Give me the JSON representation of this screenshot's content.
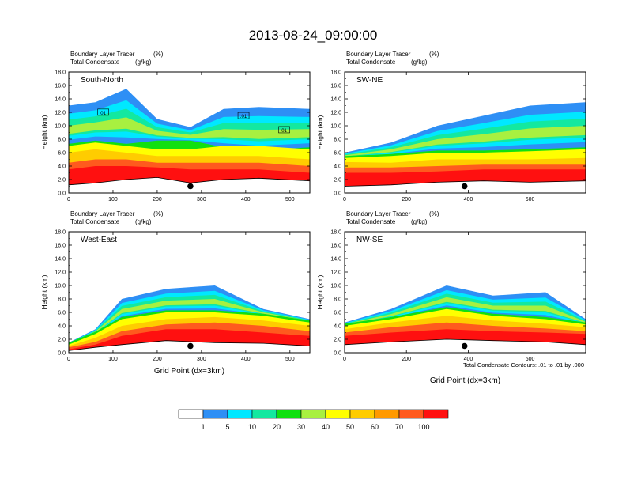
{
  "title": "2013-08-24_09:00:00",
  "colors": {
    "shading": [
      "#ffffff",
      "#2e8ff5",
      "#00e8ff",
      "#13e8a0",
      "#10e010",
      "#a8f040",
      "#ffff00",
      "#ffcc00",
      "#ff9900",
      "#ff5a1e",
      "#ff1010"
    ],
    "terrain_line": "#000000",
    "contour_line": "#000000"
  },
  "chart_data": [
    {
      "type": "heatmap",
      "panel": "South-North",
      "label_left_1": "Boundary Layer Tracer",
      "unit_1": "(%)",
      "label_left_2": "Total Condensate",
      "unit_2": "(g/kg)",
      "ylabel": "Height (km)",
      "xlabel": "",
      "ylim": [
        0,
        18
      ],
      "xlim": [
        0,
        545
      ],
      "yticks": [
        "0.0",
        "2.0",
        "4.0",
        "6.0",
        "8.0",
        "10.0",
        "12.0",
        "14.0",
        "16.0",
        "18.0"
      ],
      "xticks": [
        "0",
        "100",
        "200",
        "300",
        "400",
        "500"
      ],
      "marker_x": 275,
      "marker_y": 1.0,
      "contour_labels": [
        {
          "text": "01",
          "x": 78,
          "y": 11.9
        },
        {
          "text": ".01",
          "x": 395,
          "y": 11.4
        },
        {
          "text": "01",
          "x": 487,
          "y": 9.3
        }
      ],
      "columns": [
        {
          "x": 0,
          "terrain": 1.2,
          "bl": [
            3.5,
            4.5,
            6,
            7
          ],
          "cloud": [
            7,
            13
          ]
        },
        {
          "x": 60,
          "terrain": 1.5,
          "bl": [
            4,
            5,
            6.5,
            7.5
          ],
          "cloud": [
            7.5,
            13.5
          ]
        },
        {
          "x": 130,
          "terrain": 2.0,
          "bl": [
            4,
            5,
            6,
            7
          ],
          "cloud": [
            7,
            15.5
          ]
        },
        {
          "x": 200,
          "terrain": 2.3,
          "bl": [
            3.8,
            4.5,
            5.5,
            6.5
          ],
          "cloud": [
            7.5,
            11
          ]
        },
        {
          "x": 275,
          "terrain": 1.5,
          "bl": [
            3.5,
            4.5,
            5.5,
            6.5
          ],
          "cloud": [
            7.5,
            9.8
          ]
        },
        {
          "x": 350,
          "terrain": 2.0,
          "bl": [
            3.5,
            4.5,
            5.5,
            7
          ],
          "cloud": [
            6.5,
            12.5
          ]
        },
        {
          "x": 430,
          "terrain": 2.2,
          "bl": [
            3.5,
            4.5,
            5.5,
            7
          ],
          "cloud": [
            6,
            12.8
          ]
        },
        {
          "x": 545,
          "terrain": 1.8,
          "bl": [
            3,
            4,
            5,
            6.5
          ],
          "cloud": [
            6.5,
            12.5
          ]
        }
      ]
    },
    {
      "type": "heatmap",
      "panel": "SW-NE",
      "label_left_1": "Boundary Layer Tracer",
      "unit_1": "(%)",
      "label_left_2": "Total Condensate",
      "unit_2": "(g/kg)",
      "ylabel": "Height (km)",
      "xlabel": "",
      "ylim": [
        0,
        18
      ],
      "xlim": [
        0,
        780
      ],
      "yticks": [
        "0.0",
        "2.0",
        "4.0",
        "6.0",
        "8.0",
        "10.0",
        "12.0",
        "14.0",
        "16.0",
        "18.0"
      ],
      "xticks": [
        "0",
        "200",
        "400",
        "600"
      ],
      "marker_x": 388,
      "marker_y": 1.0,
      "contour_labels": [],
      "columns": [
        {
          "x": 0,
          "terrain": 1.0,
          "bl": [
            3,
            3.8,
            4.6,
            5.2
          ],
          "cloud": [
            5.2,
            6
          ]
        },
        {
          "x": 150,
          "terrain": 1.2,
          "bl": [
            3,
            3.8,
            4.5,
            5.5
          ],
          "cloud": [
            5.5,
            7.5
          ]
        },
        {
          "x": 300,
          "terrain": 1.6,
          "bl": [
            3.2,
            4,
            5,
            6
          ],
          "cloud": [
            6,
            10
          ]
        },
        {
          "x": 450,
          "terrain": 1.8,
          "bl": [
            3.5,
            4.2,
            5,
            6
          ],
          "cloud": [
            6,
            11.5
          ]
        },
        {
          "x": 600,
          "terrain": 1.6,
          "bl": [
            3.5,
            4.2,
            5,
            6.2
          ],
          "cloud": [
            6.2,
            13
          ]
        },
        {
          "x": 780,
          "terrain": 1.8,
          "bl": [
            3.5,
            4.2,
            5.2,
            6.5
          ],
          "cloud": [
            6.5,
            13.5
          ]
        }
      ]
    },
    {
      "type": "heatmap",
      "panel": "West-East",
      "label_left_1": "Boundary Layer Tracer",
      "unit_1": "(%)",
      "label_left_2": "Total Condensate",
      "unit_2": "(g/kg)",
      "ylabel": "Height (km)",
      "xlabel": "Grid Point (dx=3km)",
      "ylim": [
        0,
        18
      ],
      "xlim": [
        0,
        545
      ],
      "yticks": [
        "0.0",
        "2.0",
        "4.0",
        "6.0",
        "8.0",
        "10.0",
        "12.0",
        "14.0",
        "16.0",
        "18.0"
      ],
      "xticks": [
        "0",
        "100",
        "200",
        "300",
        "400",
        "500"
      ],
      "marker_x": 275,
      "marker_y": 1.0,
      "contour_labels": [],
      "columns": [
        {
          "x": 0,
          "terrain": 0.3,
          "bl": [
            0.5,
            0.8,
            1.0,
            1.2
          ],
          "cloud": [
            1.2,
            1.5
          ]
        },
        {
          "x": 60,
          "terrain": 0.8,
          "bl": [
            1.2,
            1.6,
            2.2,
            2.8
          ],
          "cloud": [
            2.8,
            3.5
          ]
        },
        {
          "x": 120,
          "terrain": 1.2,
          "bl": [
            2.5,
            3.2,
            4,
            5
          ],
          "cloud": [
            5,
            8
          ]
        },
        {
          "x": 220,
          "terrain": 1.8,
          "bl": [
            3.5,
            4.2,
            5,
            6
          ],
          "cloud": [
            6,
            9.5
          ]
        },
        {
          "x": 330,
          "terrain": 1.5,
          "bl": [
            3.5,
            4.5,
            5.3,
            6
          ],
          "cloud": [
            6,
            10
          ]
        },
        {
          "x": 440,
          "terrain": 1.4,
          "bl": [
            3,
            4,
            4.8,
            5.5
          ],
          "cloud": [
            5.5,
            6.5
          ]
        },
        {
          "x": 545,
          "terrain": 1.0,
          "bl": [
            2.5,
            3.2,
            4,
            4.5
          ],
          "cloud": [
            4.5,
            5
          ]
        }
      ]
    },
    {
      "type": "heatmap",
      "panel": "NW-SE",
      "label_left_1": "Boundary Layer Tracer",
      "unit_1": "(%)",
      "label_left_2": "Total Condensate",
      "unit_2": "(g/kg)",
      "ylabel": "Height (km)",
      "xlabel": "Grid Point (dx=3km)",
      "ylim": [
        0,
        18
      ],
      "xlim": [
        0,
        780
      ],
      "yticks": [
        "0.0",
        "2.0",
        "4.0",
        "6.0",
        "8.0",
        "10.0",
        "12.0",
        "14.0",
        "16.0",
        "18.0"
      ],
      "xticks": [
        "0",
        "200",
        "400",
        "600"
      ],
      "marker_x": 388,
      "marker_y": 1.0,
      "contour_labels": [],
      "columns": [
        {
          "x": 0,
          "terrain": 1.2,
          "bl": [
            2.5,
            3,
            3.5,
            4
          ],
          "cloud": [
            4,
            4.5
          ]
        },
        {
          "x": 150,
          "terrain": 1.6,
          "bl": [
            3,
            3.8,
            4.5,
            5
          ],
          "cloud": [
            5,
            6.5
          ]
        },
        {
          "x": 330,
          "terrain": 2.0,
          "bl": [
            3.5,
            4.5,
            5.5,
            6.5
          ],
          "cloud": [
            6.5,
            10
          ]
        },
        {
          "x": 480,
          "terrain": 1.8,
          "bl": [
            3.2,
            4,
            4.8,
            5.5
          ],
          "cloud": [
            5.5,
            8.5
          ]
        },
        {
          "x": 650,
          "terrain": 1.6,
          "bl": [
            3,
            3.6,
            4.3,
            5
          ],
          "cloud": [
            5,
            9
          ]
        },
        {
          "x": 780,
          "terrain": 1.2,
          "bl": [
            2.8,
            3.2,
            3.8,
            4.2
          ],
          "cloud": [
            4.2,
            5
          ]
        }
      ]
    }
  ],
  "footnote": "Total Condensate Contours: .01 to .01 by .000",
  "colorbar": {
    "labels": [
      "1",
      "5",
      "10",
      "20",
      "30",
      "40",
      "50",
      "60",
      "70",
      "100"
    ],
    "colors": [
      "#ffffff",
      "#2e8ff5",
      "#00e8ff",
      "#13e8a0",
      "#10e010",
      "#a8f040",
      "#ffff00",
      "#ffcc00",
      "#ff9900",
      "#ff5a1e",
      "#ff1010"
    ]
  }
}
